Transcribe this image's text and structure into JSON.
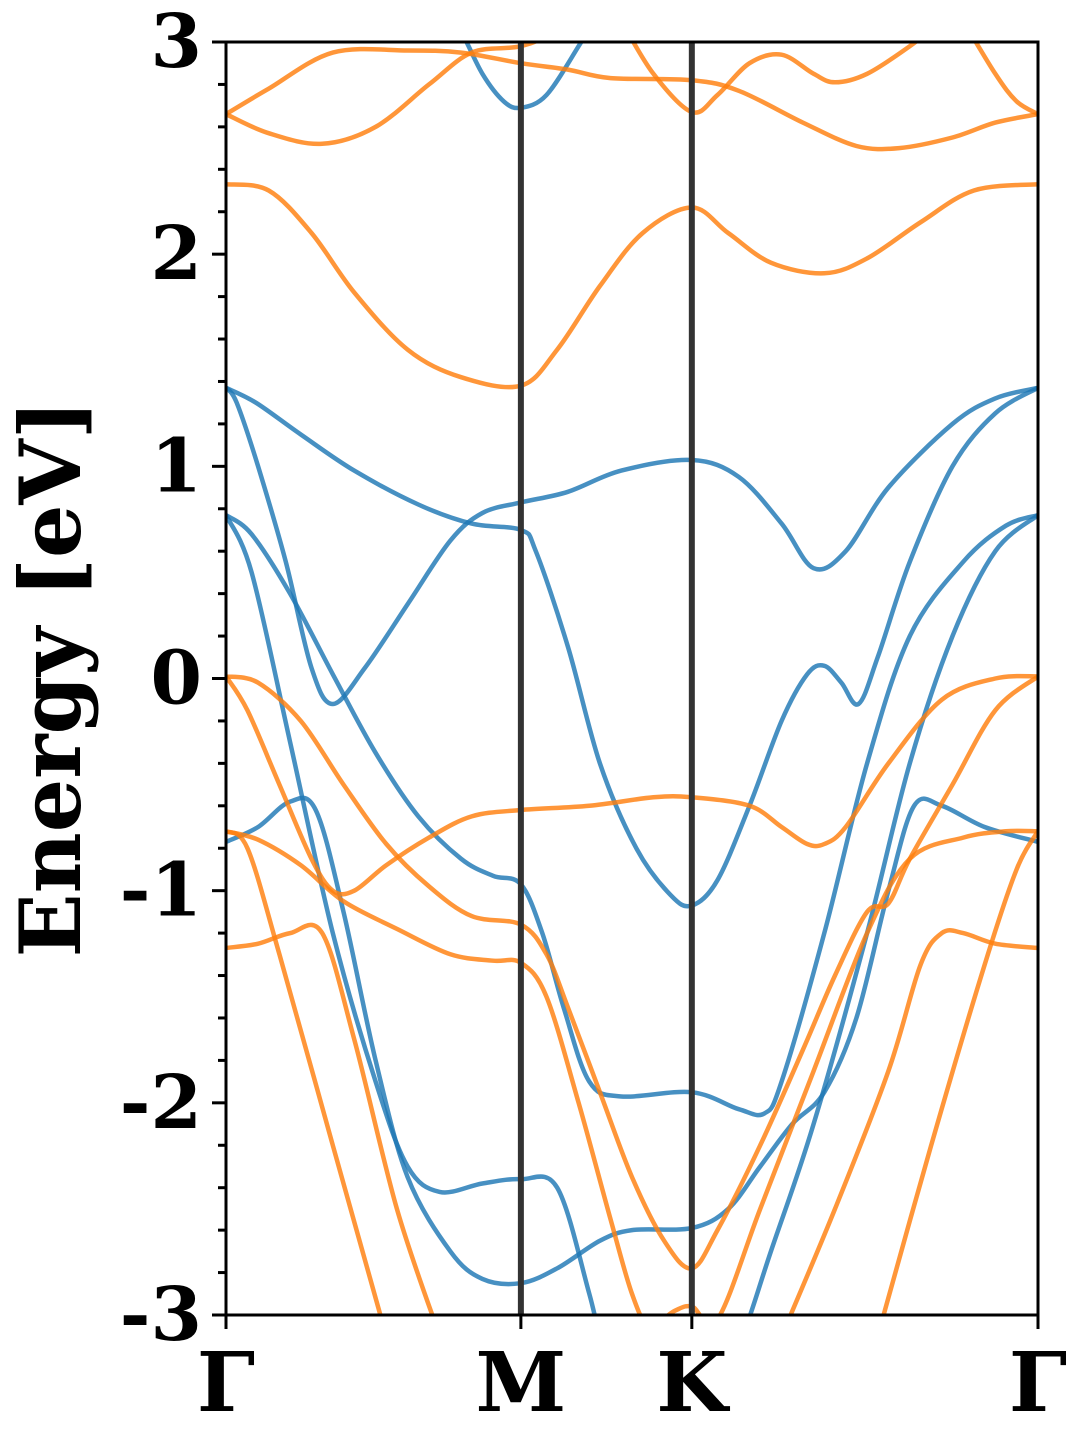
{
  "chart_data": {
    "type": "line",
    "title": "",
    "xlabel": "",
    "ylabel": "Energy [eV]",
    "ylim": [
      -3,
      3
    ],
    "xlim": [
      0,
      3.8
    ],
    "grid": false,
    "legend": "none",
    "x_ticks": [
      {
        "x": 0.0,
        "label": "Γ"
      },
      {
        "x": 1.38,
        "label": "M"
      },
      {
        "x": 2.18,
        "label": "K"
      },
      {
        "x": 3.8,
        "label": "Γ"
      }
    ],
    "y_ticks": [
      {
        "y": -3,
        "label": "-3"
      },
      {
        "y": -2,
        "label": "-2"
      },
      {
        "y": -1,
        "label": "-1"
      },
      {
        "y": 0,
        "label": "0"
      },
      {
        "y": 1,
        "label": "1"
      },
      {
        "y": 2,
        "label": "2"
      },
      {
        "y": 3,
        "label": "3"
      }
    ],
    "y_minor_step": 0.2,
    "high_symmetry_lines": [
      1.38,
      2.18
    ],
    "colors": {
      "blue": "#1f77b4",
      "orange": "#ff7f0e",
      "vline": "#333333"
    },
    "series": [
      {
        "color": "blue",
        "points": [
          [
            0,
            1.37
          ],
          [
            0.14,
            1.3
          ],
          [
            0.35,
            1.15
          ],
          [
            0.6,
            0.98
          ],
          [
            0.9,
            0.82
          ],
          [
            1.15,
            0.73
          ],
          [
            1.38,
            0.7
          ],
          [
            1.45,
            0.6
          ],
          [
            1.6,
            0.15
          ],
          [
            1.75,
            -0.4
          ],
          [
            1.92,
            -0.8
          ],
          [
            2.08,
            -1.02
          ],
          [
            2.18,
            -1.07
          ],
          [
            2.3,
            -0.95
          ],
          [
            2.45,
            -0.6
          ],
          [
            2.6,
            -0.2
          ],
          [
            2.72,
            0.02
          ],
          [
            2.8,
            0.06
          ],
          [
            2.88,
            -0.02
          ],
          [
            2.96,
            -0.12
          ],
          [
            3.05,
            0.1
          ],
          [
            3.2,
            0.55
          ],
          [
            3.4,
            1.0
          ],
          [
            3.6,
            1.25
          ],
          [
            3.8,
            1.37
          ]
        ]
      },
      {
        "color": "blue",
        "points": [
          [
            0,
            1.37
          ],
          [
            0.05,
            1.3
          ],
          [
            0.15,
            1.0
          ],
          [
            0.28,
            0.55
          ],
          [
            0.4,
            0.05
          ],
          [
            0.5,
            -0.12
          ],
          [
            0.65,
            0.05
          ],
          [
            0.85,
            0.35
          ],
          [
            1.05,
            0.65
          ],
          [
            1.2,
            0.78
          ],
          [
            1.38,
            0.83
          ],
          [
            1.6,
            0.88
          ],
          [
            1.85,
            0.98
          ],
          [
            2.18,
            1.03
          ],
          [
            2.4,
            0.95
          ],
          [
            2.6,
            0.73
          ],
          [
            2.75,
            0.52
          ],
          [
            2.9,
            0.6
          ],
          [
            3.1,
            0.9
          ],
          [
            3.4,
            1.2
          ],
          [
            3.6,
            1.32
          ],
          [
            3.8,
            1.37
          ]
        ]
      },
      {
        "color": "blue",
        "points": [
          [
            0,
            0.77
          ],
          [
            0.12,
            0.68
          ],
          [
            0.3,
            0.4
          ],
          [
            0.5,
            0.02
          ],
          [
            0.7,
            -0.35
          ],
          [
            0.9,
            -0.65
          ],
          [
            1.1,
            -0.85
          ],
          [
            1.25,
            -0.93
          ],
          [
            1.38,
            -0.97
          ],
          [
            1.48,
            -1.2
          ],
          [
            1.58,
            -1.55
          ],
          [
            1.7,
            -1.9
          ],
          [
            1.85,
            -1.97
          ],
          [
            2.18,
            -1.95
          ],
          [
            2.4,
            -2.03
          ],
          [
            2.52,
            -2.05
          ],
          [
            2.6,
            -1.9
          ],
          [
            2.8,
            -1.2
          ],
          [
            3.0,
            -0.4
          ],
          [
            3.2,
            0.2
          ],
          [
            3.45,
            0.55
          ],
          [
            3.65,
            0.72
          ],
          [
            3.8,
            0.77
          ]
        ]
      },
      {
        "color": "blue",
        "points": [
          [
            0,
            0.77
          ],
          [
            0.12,
            0.5
          ],
          [
            0.3,
            -0.3
          ],
          [
            0.5,
            -1.2
          ],
          [
            0.7,
            -1.9
          ],
          [
            0.85,
            -2.3
          ],
          [
            1.0,
            -2.42
          ],
          [
            1.2,
            -2.38
          ],
          [
            1.38,
            -2.36
          ],
          [
            1.55,
            -2.4
          ],
          [
            1.7,
            -2.9
          ],
          [
            1.8,
            -3.3
          ],
          [
            1.95,
            -3.6
          ],
          [
            2.1,
            -3.6
          ],
          [
            2.25,
            -3.45
          ],
          [
            2.4,
            -3.15
          ],
          [
            2.55,
            -2.7
          ],
          [
            2.75,
            -2.1
          ],
          [
            3.0,
            -1.2
          ],
          [
            3.2,
            -0.4
          ],
          [
            3.4,
            0.2
          ],
          [
            3.6,
            0.6
          ],
          [
            3.8,
            0.77
          ]
        ]
      },
      {
        "color": "blue",
        "points": [
          [
            0,
            -0.77
          ],
          [
            0.15,
            -0.7
          ],
          [
            0.3,
            -0.58
          ],
          [
            0.42,
            -0.62
          ],
          [
            0.55,
            -1.1
          ],
          [
            0.7,
            -1.8
          ],
          [
            0.85,
            -2.35
          ],
          [
            1.05,
            -2.7
          ],
          [
            1.2,
            -2.83
          ],
          [
            1.38,
            -2.85
          ],
          [
            1.55,
            -2.78
          ],
          [
            1.75,
            -2.65
          ],
          [
            1.9,
            -2.6
          ],
          [
            2.18,
            -2.59
          ],
          [
            2.35,
            -2.5
          ],
          [
            2.5,
            -2.3
          ],
          [
            2.65,
            -2.1
          ],
          [
            2.8,
            -1.95
          ],
          [
            2.95,
            -1.6
          ],
          [
            3.1,
            -1.0
          ],
          [
            3.22,
            -0.6
          ],
          [
            3.35,
            -0.6
          ],
          [
            3.55,
            -0.7
          ],
          [
            3.8,
            -0.77
          ]
        ]
      },
      {
        "color": "blue",
        "points": [
          [
            1.0,
            3.2
          ],
          [
            1.1,
            3.05
          ],
          [
            1.2,
            2.85
          ],
          [
            1.3,
            2.72
          ],
          [
            1.38,
            2.69
          ],
          [
            1.5,
            2.75
          ],
          [
            1.65,
            2.98
          ],
          [
            1.75,
            3.15
          ]
        ]
      },
      {
        "color": "orange",
        "points": [
          [
            0,
            2.33
          ],
          [
            0.2,
            2.3
          ],
          [
            0.4,
            2.1
          ],
          [
            0.6,
            1.82
          ],
          [
            0.85,
            1.55
          ],
          [
            1.1,
            1.42
          ],
          [
            1.38,
            1.38
          ],
          [
            1.55,
            1.55
          ],
          [
            1.75,
            1.85
          ],
          [
            1.95,
            2.1
          ],
          [
            2.18,
            2.22
          ],
          [
            2.35,
            2.1
          ],
          [
            2.55,
            1.96
          ],
          [
            2.8,
            1.91
          ],
          [
            3.0,
            1.98
          ],
          [
            3.25,
            2.15
          ],
          [
            3.5,
            2.3
          ],
          [
            3.8,
            2.33
          ]
        ]
      },
      {
        "color": "orange",
        "points": [
          [
            0,
            2.66
          ],
          [
            0.2,
            2.57
          ],
          [
            0.45,
            2.52
          ],
          [
            0.7,
            2.6
          ],
          [
            0.95,
            2.8
          ],
          [
            1.15,
            2.95
          ],
          [
            1.38,
            2.98
          ],
          [
            1.55,
            3.05
          ],
          [
            1.7,
            3.15
          ]
        ]
      },
      {
        "color": "orange",
        "points": [
          [
            0,
            2.66
          ],
          [
            0.2,
            2.78
          ],
          [
            0.5,
            2.95
          ],
          [
            0.85,
            2.96
          ],
          [
            1.1,
            2.95
          ],
          [
            1.38,
            2.9
          ],
          [
            1.6,
            2.87
          ],
          [
            1.8,
            2.83
          ],
          [
            2.18,
            2.82
          ],
          [
            2.4,
            2.77
          ],
          [
            2.7,
            2.62
          ],
          [
            2.95,
            2.51
          ],
          [
            3.15,
            2.5
          ],
          [
            3.4,
            2.55
          ],
          [
            3.6,
            2.62
          ],
          [
            3.8,
            2.66
          ]
        ]
      },
      {
        "color": "orange",
        "points": [
          [
            1.85,
            3.1
          ],
          [
            2.0,
            2.85
          ],
          [
            2.18,
            2.67
          ],
          [
            2.3,
            2.75
          ],
          [
            2.45,
            2.9
          ],
          [
            2.6,
            2.94
          ],
          [
            2.75,
            2.85
          ],
          [
            2.85,
            2.81
          ],
          [
            3.0,
            2.85
          ],
          [
            3.2,
            2.98
          ],
          [
            3.35,
            3.1
          ]
        ]
      },
      {
        "color": "orange",
        "points": [
          [
            3.45,
            3.1
          ],
          [
            3.6,
            2.85
          ],
          [
            3.7,
            2.72
          ],
          [
            3.8,
            2.66
          ]
        ]
      },
      {
        "color": "orange",
        "points": [
          [
            0,
            0.01
          ],
          [
            0.15,
            -0.02
          ],
          [
            0.35,
            -0.2
          ],
          [
            0.55,
            -0.5
          ],
          [
            0.75,
            -0.78
          ],
          [
            0.95,
            -0.98
          ],
          [
            1.15,
            -1.12
          ],
          [
            1.38,
            -1.16
          ],
          [
            1.5,
            -1.3
          ],
          [
            1.6,
            -1.55
          ],
          [
            1.75,
            -1.95
          ],
          [
            1.9,
            -2.35
          ],
          [
            2.05,
            -2.65
          ],
          [
            2.18,
            -2.78
          ],
          [
            2.3,
            -2.6
          ],
          [
            2.5,
            -2.2
          ],
          [
            2.7,
            -1.75
          ],
          [
            2.85,
            -1.4
          ],
          [
            3.0,
            -1.1
          ],
          [
            3.1,
            -1.06
          ],
          [
            3.2,
            -0.85
          ],
          [
            3.4,
            -0.5
          ],
          [
            3.6,
            -0.15
          ],
          [
            3.8,
            0.01
          ]
        ]
      },
      {
        "color": "orange",
        "points": [
          [
            0,
            0.01
          ],
          [
            0.1,
            -0.15
          ],
          [
            0.25,
            -0.5
          ],
          [
            0.4,
            -0.85
          ],
          [
            0.5,
            -1.0
          ],
          [
            0.6,
            -1.0
          ],
          [
            0.75,
            -0.88
          ],
          [
            0.95,
            -0.75
          ],
          [
            1.15,
            -0.65
          ],
          [
            1.38,
            -0.62
          ],
          [
            1.7,
            -0.6
          ],
          [
            2.0,
            -0.56
          ],
          [
            2.18,
            -0.56
          ],
          [
            2.45,
            -0.6
          ],
          [
            2.6,
            -0.7
          ],
          [
            2.72,
            -0.78
          ],
          [
            2.8,
            -0.78
          ],
          [
            2.9,
            -0.7
          ],
          [
            3.1,
            -0.4
          ],
          [
            3.35,
            -0.1
          ],
          [
            3.6,
            0.0
          ],
          [
            3.8,
            0.01
          ]
        ]
      },
      {
        "color": "orange",
        "points": [
          [
            0,
            -0.72
          ],
          [
            0.15,
            -0.76
          ],
          [
            0.35,
            -0.88
          ],
          [
            0.55,
            -1.05
          ],
          [
            0.8,
            -1.18
          ],
          [
            1.05,
            -1.3
          ],
          [
            1.25,
            -1.33
          ],
          [
            1.38,
            -1.34
          ],
          [
            1.5,
            -1.5
          ],
          [
            1.65,
            -2.0
          ],
          [
            1.8,
            -2.55
          ],
          [
            1.9,
            -2.9
          ],
          [
            1.98,
            -3.05
          ],
          [
            2.1,
            -2.98
          ],
          [
            2.18,
            -2.96
          ],
          [
            2.3,
            -3.02
          ],
          [
            2.5,
            -2.5
          ],
          [
            2.75,
            -1.85
          ],
          [
            3.0,
            -1.2
          ],
          [
            3.2,
            -0.85
          ],
          [
            3.45,
            -0.75
          ],
          [
            3.65,
            -0.72
          ],
          [
            3.8,
            -0.72
          ]
        ]
      },
      {
        "color": "orange",
        "points": [
          [
            0,
            -1.27
          ],
          [
            0.15,
            -1.25
          ],
          [
            0.3,
            -1.2
          ],
          [
            0.45,
            -1.2
          ],
          [
            0.6,
            -1.7
          ],
          [
            0.8,
            -2.5
          ],
          [
            1.0,
            -3.1
          ]
        ]
      },
      {
        "color": "orange",
        "points": [
          [
            0,
            -0.72
          ],
          [
            0.1,
            -0.8
          ],
          [
            0.25,
            -1.3
          ],
          [
            0.5,
            -2.2
          ],
          [
            0.75,
            -3.1
          ]
        ]
      },
      {
        "color": "orange",
        "points": [
          [
            2.6,
            -3.1
          ],
          [
            2.85,
            -2.5
          ],
          [
            3.1,
            -1.85
          ],
          [
            3.25,
            -1.35
          ],
          [
            3.35,
            -1.2
          ],
          [
            3.45,
            -1.2
          ],
          [
            3.6,
            -1.25
          ],
          [
            3.8,
            -1.27
          ]
        ]
      },
      {
        "color": "orange",
        "points": [
          [
            3.05,
            -3.1
          ],
          [
            3.3,
            -2.2
          ],
          [
            3.55,
            -1.35
          ],
          [
            3.7,
            -0.9
          ],
          [
            3.8,
            -0.72
          ]
        ]
      }
    ]
  }
}
